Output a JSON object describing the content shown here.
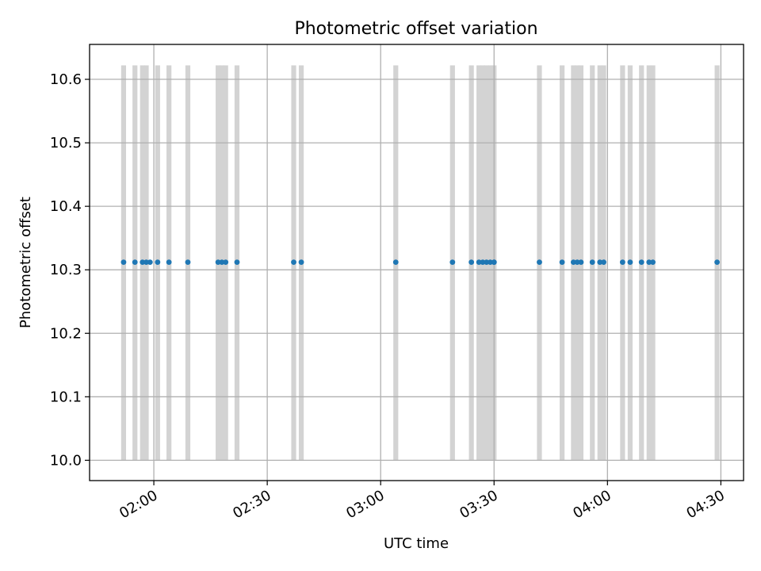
{
  "chart_data": {
    "type": "scatter",
    "title": "Photometric offset variation",
    "xlabel": "UTC time",
    "ylabel": "Photometric offset",
    "x_axis_type": "time",
    "xlim": [
      "01:43",
      "04:36"
    ],
    "ylim": [
      9.968,
      10.655
    ],
    "x_ticks": [
      "02:00",
      "02:30",
      "03:00",
      "03:30",
      "04:00",
      "04:30"
    ],
    "y_ticks": [
      10.0,
      10.1,
      10.2,
      10.3,
      10.4,
      10.5,
      10.6
    ],
    "y_tick_labels": [
      "10.0",
      "10.1",
      "10.2",
      "10.3",
      "10.4",
      "10.5",
      "10.6"
    ],
    "grid": true,
    "band_range": [
      10.0,
      10.622
    ],
    "band_width_minutes": 1.3,
    "bands_x": [
      "01:52",
      "01:55",
      "01:57",
      "01:58",
      "02:01",
      "02:04",
      "02:09",
      "02:17",
      "02:18",
      "02:19",
      "02:22",
      "02:37",
      "02:39",
      "03:04",
      "03:19",
      "03:24",
      "03:26",
      "03:27",
      "03:28",
      "03:29",
      "03:30",
      "03:42",
      "03:48",
      "03:51",
      "03:52",
      "03:53",
      "03:56",
      "03:58",
      "03:59",
      "04:04",
      "04:06",
      "04:09",
      "04:11",
      "04:12",
      "04:29"
    ],
    "points_x": [
      "01:52",
      "01:55",
      "01:57",
      "01:58",
      "01:59",
      "02:01",
      "02:04",
      "02:09",
      "02:17",
      "02:18",
      "02:19",
      "02:22",
      "02:37",
      "02:39",
      "03:04",
      "03:19",
      "03:24",
      "03:26",
      "03:27",
      "03:28",
      "03:29",
      "03:30",
      "03:30",
      "03:42",
      "03:48",
      "03:51",
      "03:52",
      "03:53",
      "03:56",
      "03:58",
      "03:59",
      "04:04",
      "04:06",
      "04:09",
      "04:11",
      "04:12",
      "04:29"
    ],
    "points_y": 10.312,
    "point_color": "#1f77b4",
    "band_color": "#d3d3d3",
    "grid_color": "#b0b0b0"
  }
}
